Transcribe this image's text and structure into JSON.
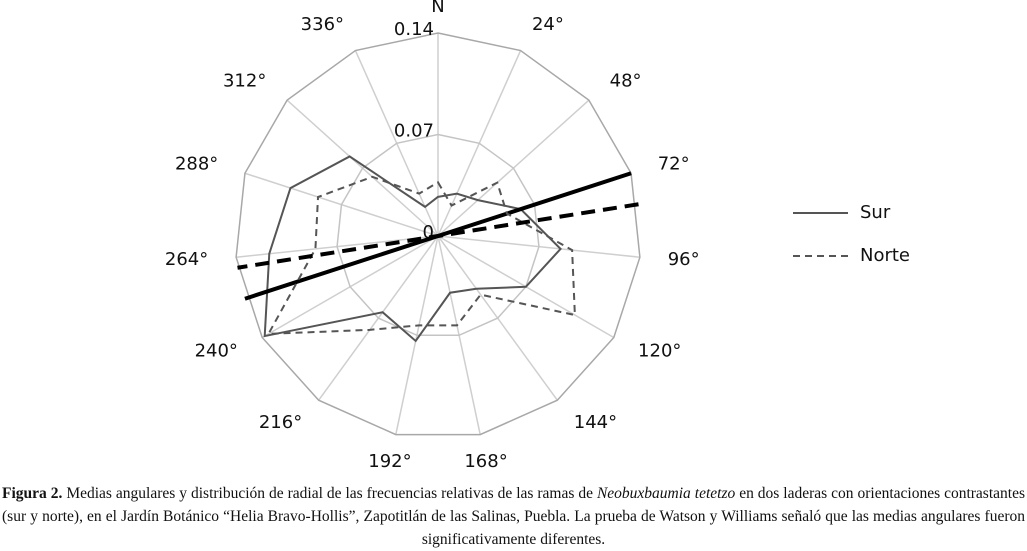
{
  "chart_data": {
    "type": "radar",
    "categories": [
      "N",
      "24°",
      "48°",
      "72°",
      "96°",
      "120°",
      "144°",
      "168°",
      "192°",
      "216°",
      "240°",
      "264°",
      "288°",
      "312°",
      "336°"
    ],
    "ylim": [
      0,
      0.14
    ],
    "yticks": [
      0,
      0.07,
      0.14
    ],
    "series": [
      {
        "name": "Sur",
        "color": "#555555",
        "dash": false,
        "mean_angle": 72,
        "values": [
          0.027,
          0.032,
          0.037,
          0.06,
          0.085,
          0.07,
          0.045,
          0.04,
          0.074,
          0.065,
          0.138,
          0.117,
          0.107,
          0.082,
          0.022
        ]
      },
      {
        "name": "Norte",
        "color": "#555555",
        "dash": true,
        "mean_angle": 81,
        "values": [
          0.037,
          0.023,
          0.055,
          0.05,
          0.093,
          0.109,
          0.05,
          0.063,
          0.063,
          0.08,
          0.135,
          0.085,
          0.087,
          0.061,
          0.032
        ]
      }
    ]
  },
  "caption": {
    "label": "Figura 2.",
    "text_before": " Medias angulares y distribución de radial de las frecuencias relativas de las ramas de ",
    "species": "Neobuxbaumia tetetzo",
    "text_after": " en dos laderas con orientaciones contrastantes (sur y norte), en el Jardín Botánico “Helia Bravo-Hollis”, Zapotitlán de las Salinas, Puebla. La prueba de Watson y Williams señaló que las medias angulares fueron significativamente diferentes."
  }
}
